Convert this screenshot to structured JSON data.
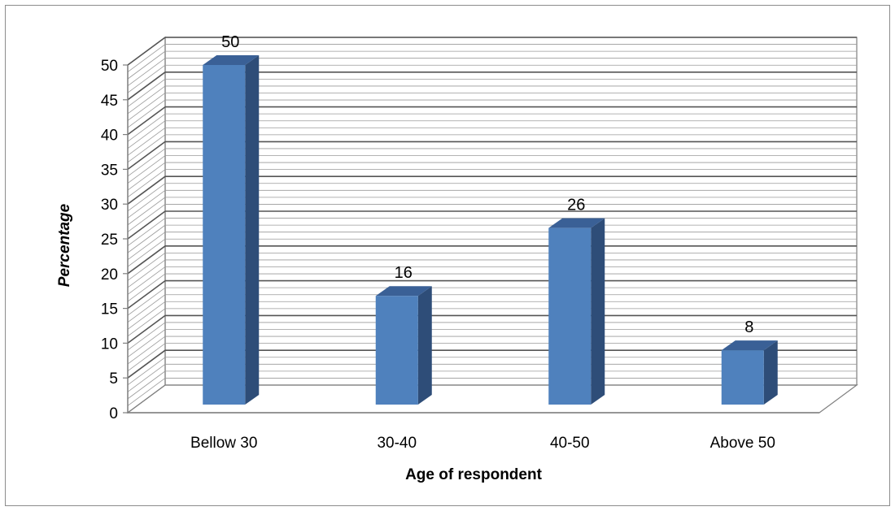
{
  "chart_data": {
    "type": "bar",
    "style": "3d-column",
    "categories": [
      "Bellow 30",
      "30-40",
      "40-50",
      "Above 50"
    ],
    "values": [
      50,
      16,
      26,
      8
    ],
    "data_labels": [
      "50",
      "16",
      "26",
      "8"
    ],
    "title": "",
    "xlabel": "Age of respondent",
    "ylabel": "Percentage",
    "ylim": [
      0,
      50
    ],
    "ytick_step": 5,
    "yticks": [
      "0",
      "5",
      "10",
      "15",
      "20",
      "25",
      "30",
      "35",
      "40",
      "45",
      "50"
    ],
    "grid": true,
    "minor_grid": true,
    "legend": "none",
    "colors": {
      "bar_front": "#4f81bd",
      "bar_side": "#2e4d78",
      "bar_top": "#3a6096",
      "grid": "#7f7f7f",
      "axis": "#7f7f7f",
      "frame": "#8c8c8c"
    }
  }
}
